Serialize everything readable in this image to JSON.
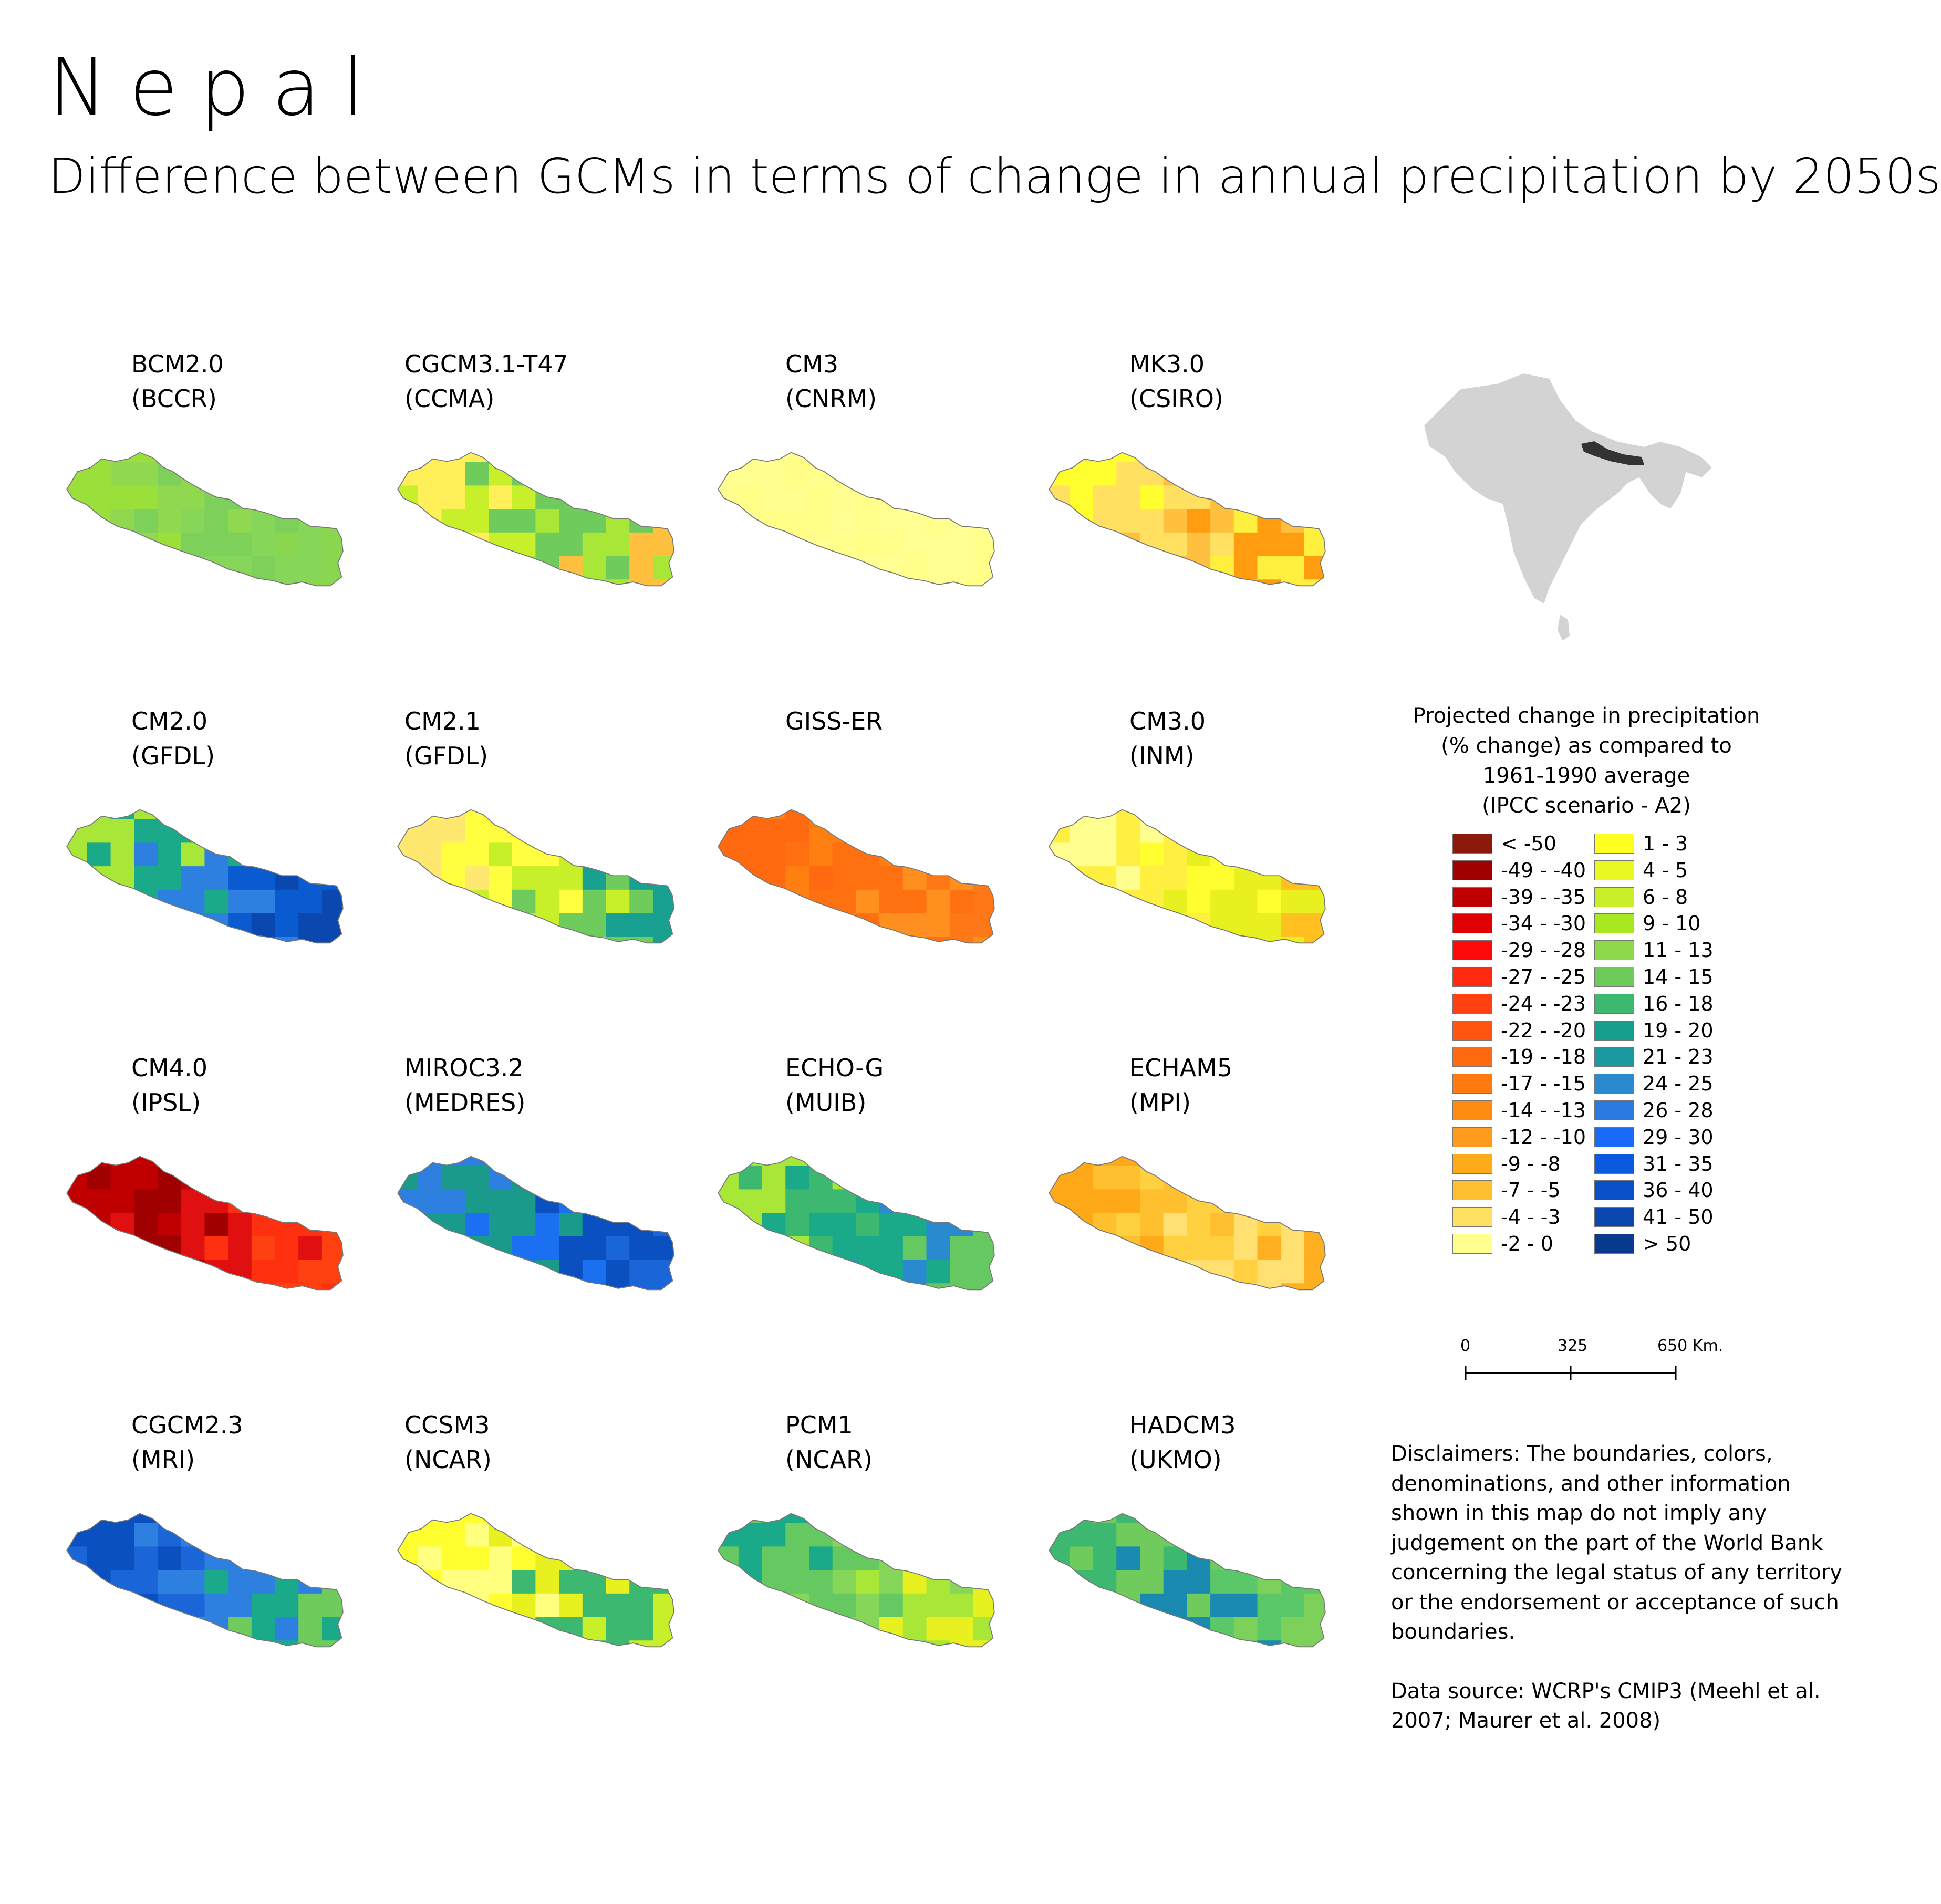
{
  "header": {
    "title": "Nepal",
    "subtitle": "Difference between GCMs in terms of change in annual precipitation by 2050s"
  },
  "maps": [
    {
      "model": "BCM2.0",
      "institution": "(BCCR)",
      "colors": [
        "#9be03a",
        "#8fd850",
        "#7dd15a",
        "#86d65a",
        "#8ad64e"
      ]
    },
    {
      "model": "CGCM3.1-T47",
      "institution": "(CCMA)",
      "colors": [
        "#fff05a",
        "#c8f02a",
        "#6fcc5c",
        "#a8e638",
        "#ffc040"
      ]
    },
    {
      "model": "CM3",
      "institution": "(CNRM)",
      "colors": [
        "#ffff90",
        "#ffff88",
        "#ffff8c",
        "#ffff92",
        "#ffff8a"
      ]
    },
    {
      "model": "MK3.0",
      "institution": "(CSIRO)",
      "colors": [
        "#ffff30",
        "#ffe060",
        "#ffc040",
        "#ff9c10",
        "#fff040"
      ]
    },
    {
      "model": "CM2.0",
      "institution": "(GFDL)",
      "colors": [
        "#a8e638",
        "#1aaa8a",
        "#2e80e0",
        "#0a5ad0",
        "#0a48b0"
      ]
    },
    {
      "model": "CM2.1",
      "institution": "(GFDL)",
      "colors": [
        "#ffe870",
        "#ffff40",
        "#c8f02a",
        "#6fcc5c",
        "#18a090"
      ]
    },
    {
      "model": "GISS-ER",
      "institution": "",
      "colors": [
        "#ff6a10",
        "#ff8010",
        "#ff7010",
        "#ff9020",
        "#ff7818"
      ]
    },
    {
      "model": "CM3.0",
      "institution": "(INM)",
      "colors": [
        "#ffff90",
        "#ffef40",
        "#ffff30",
        "#e8f020",
        "#ffc020"
      ]
    },
    {
      "model": "CM4.0",
      "institution": "(IPSL)",
      "colors": [
        "#c00000",
        "#a00000",
        "#e01010",
        "#ff3010",
        "#ff4010"
      ]
    },
    {
      "model": "MIROC3.2",
      "institution": "(MEDRES)",
      "colors": [
        "#2e80e0",
        "#1a9a8a",
        "#1a70f0",
        "#0a50c0",
        "#1a66d8"
      ]
    },
    {
      "model": "ECHO-G",
      "institution": "(MUIB)",
      "colors": [
        "#a8e638",
        "#3cb870",
        "#1aaa8a",
        "#2a8ad0",
        "#66c860"
      ]
    },
    {
      "model": "ECHAM5",
      "institution": "(MPI)",
      "colors": [
        "#ffa818",
        "#ffc030",
        "#ffd040",
        "#ffe070",
        "#ffb020"
      ]
    },
    {
      "model": "CGCM2.3",
      "institution": "(MRI)",
      "colors": [
        "#0a50c0",
        "#1a66d8",
        "#2e80e0",
        "#1aaa8a",
        "#6fcc5c"
      ]
    },
    {
      "model": "CCSM3",
      "institution": "(NCAR)",
      "colors": [
        "#ffff30",
        "#ffff80",
        "#e8f020",
        "#3cb870",
        "#c8f02a"
      ]
    },
    {
      "model": "PCM1",
      "institution": "(NCAR)",
      "colors": [
        "#1aaa8a",
        "#66c860",
        "#86d65a",
        "#a8e638",
        "#e8f020"
      ]
    },
    {
      "model": "HADCM3",
      "institution": "(UKMO)",
      "colors": [
        "#3cb870",
        "#6fcc5c",
        "#1a8ab0",
        "#5ac868",
        "#7dd15a"
      ]
    }
  ],
  "inset": {
    "highlight_color": "#333333",
    "land_color": "#d3d3d3"
  },
  "legend": {
    "title": "Projected change in precipitation\n(% change) as compared to\n1961-1990 average\n(IPCC scenario - A2)",
    "items": [
      {
        "label": "< -50",
        "color": "#8b1a0a"
      },
      {
        "label": "-49 - -40",
        "color": "#a00000"
      },
      {
        "label": "-39 - -35",
        "color": "#c00000"
      },
      {
        "label": "-34 - -30",
        "color": "#e00000"
      },
      {
        "label": "-29 - -28",
        "color": "#ff0a0a"
      },
      {
        "label": "-27 - -25",
        "color": "#ff2a10"
      },
      {
        "label": "-24 - -23",
        "color": "#ff4010"
      },
      {
        "label": "-22 - -20",
        "color": "#ff5510"
      },
      {
        "label": "-19 - -18",
        "color": "#ff6a10"
      },
      {
        "label": "-17 - -15",
        "color": "#ff7a10"
      },
      {
        "label": "-14 - -13",
        "color": "#ff8c10"
      },
      {
        "label": "-12 - -10",
        "color": "#ff9c20"
      },
      {
        "label": "-9 - -8",
        "color": "#ffaa18"
      },
      {
        "label": "-7 - -5",
        "color": "#ffc030"
      },
      {
        "label": "-4 - -3",
        "color": "#ffe060"
      },
      {
        "label": "-2 - 0",
        "color": "#ffff90"
      },
      {
        "label": "1 - 3",
        "color": "#ffff20"
      },
      {
        "label": "4 - 5",
        "color": "#e8f820"
      },
      {
        "label": "6 - 8",
        "color": "#c8f02a"
      },
      {
        "label": "9 - 10",
        "color": "#a8e820"
      },
      {
        "label": "11 - 13",
        "color": "#8ed84c"
      },
      {
        "label": "14 - 15",
        "color": "#6ecc5a"
      },
      {
        "label": "16 - 18",
        "color": "#3cb870"
      },
      {
        "label": "19 - 20",
        "color": "#14a08c"
      },
      {
        "label": "21 - 23",
        "color": "#1a9aa0"
      },
      {
        "label": "24 - 25",
        "color": "#2a8ad0"
      },
      {
        "label": "26 - 28",
        "color": "#2a7ae0"
      },
      {
        "label": "29 - 30",
        "color": "#1a6af8"
      },
      {
        "label": "31 - 35",
        "color": "#0a5ae0"
      },
      {
        "label": "36 - 40",
        "color": "#0a50c8"
      },
      {
        "label": "41 - 50",
        "color": "#0a48b0"
      },
      {
        "label": "> 50",
        "color": "#0a3a90"
      }
    ]
  },
  "scalebar": {
    "ticks": [
      "0",
      "325",
      "650 Km."
    ]
  },
  "disclaimer": {
    "text": "Disclaimers: The boundaries, colors, denominations, and other information shown in this map do not imply any judgement on the part of the World Bank concerning the legal status of any territory or the endorsement or acceptance of such boundaries.",
    "source": "Data source: WCRP's CMIP3 (Meehl et al. 2007; Maurer et al. 2008)"
  }
}
